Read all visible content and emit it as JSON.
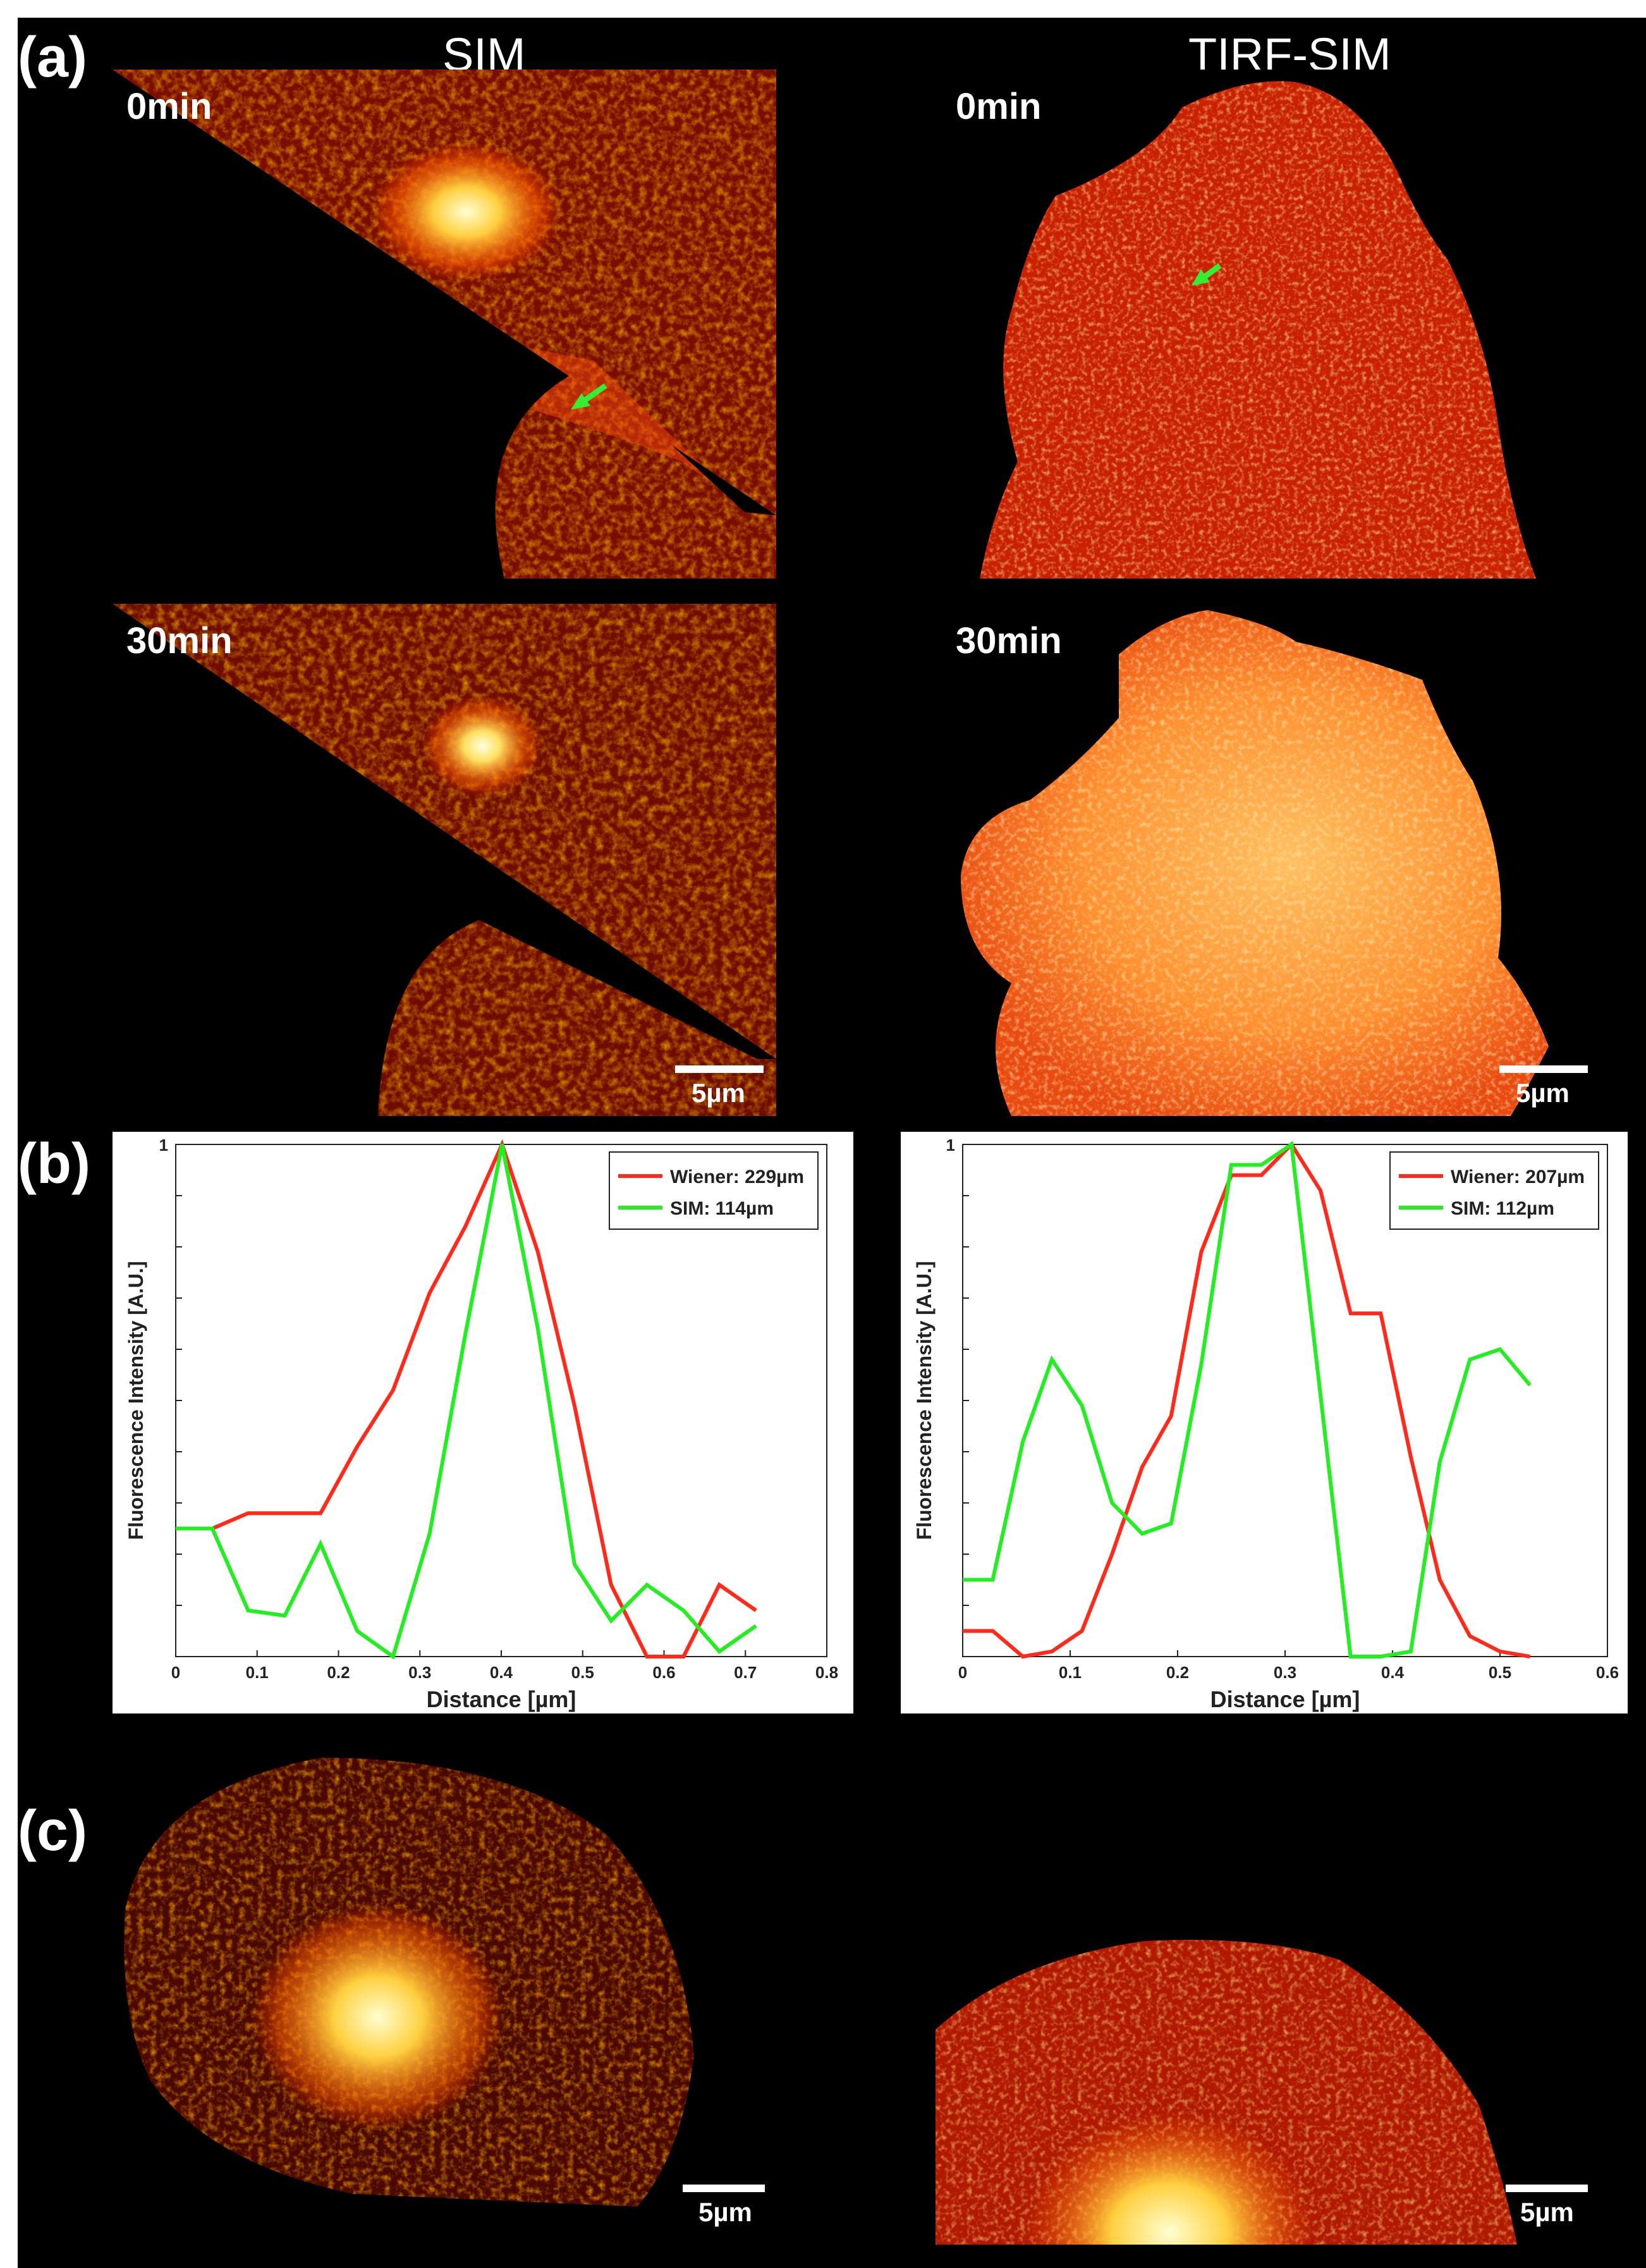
{
  "panels": {
    "a": "(a)",
    "b": "(b)",
    "c": "(c)"
  },
  "columns": {
    "left": "SIM",
    "right": "TIRF-SIM"
  },
  "time_labels": {
    "sim_top": "0min",
    "sim_bottom": "30min",
    "tirf_top": "0min",
    "tirf_bottom": "30min"
  },
  "scale_bar": "5µm",
  "colors": {
    "wiener": "#ff2a1a",
    "sim": "#22ee22",
    "arrow": "#33ee33"
  },
  "chart_data": [
    {
      "type": "line",
      "xlabel": "Distance [µm]",
      "ylabel": "Fluorescence Intensity [A.U.]",
      "xlim": [
        0,
        0.8
      ],
      "ylim": [
        0,
        1
      ],
      "xticks": [
        "0",
        "0.1",
        "0.2",
        "0.3",
        "0.4",
        "0.5",
        "0.6",
        "0.7",
        "0.8"
      ],
      "yticks": [
        "1"
      ],
      "legend_position": "top-right",
      "grid": false,
      "series": [
        {
          "name": "Wiener: 229µm",
          "color": "#ff2a1a",
          "x": [
            0,
            0.045,
            0.089,
            0.134,
            0.178,
            0.223,
            0.267,
            0.312,
            0.356,
            0.401,
            0.445,
            0.49,
            0.535,
            0.579,
            0.624,
            0.668,
            0.713
          ],
          "y": [
            0.25,
            0.25,
            0.28,
            0.28,
            0.28,
            0.41,
            0.52,
            0.71,
            0.84,
            1.0,
            0.79,
            0.49,
            0.14,
            0.0,
            0.0,
            0.14,
            0.09
          ]
        },
        {
          "name": "SIM: 114µm",
          "color": "#22ee22",
          "x": [
            0,
            0.045,
            0.089,
            0.134,
            0.178,
            0.223,
            0.267,
            0.312,
            0.356,
            0.401,
            0.445,
            0.49,
            0.535,
            0.579,
            0.624,
            0.668,
            0.713
          ],
          "y": [
            0.25,
            0.25,
            0.09,
            0.08,
            0.22,
            0.05,
            0.0,
            0.24,
            0.63,
            1.0,
            0.64,
            0.18,
            0.07,
            0.14,
            0.09,
            0.01,
            0.06
          ]
        }
      ]
    },
    {
      "type": "line",
      "xlabel": "Distance [µm]",
      "ylabel": "Fluorescence Intensity [A.U.]",
      "xlim": [
        0,
        0.6
      ],
      "ylim": [
        0,
        1
      ],
      "xticks": [
        "0",
        "0.1",
        "0.2",
        "0.3",
        "0.4",
        "0.5",
        "0.6"
      ],
      "yticks": [
        "1"
      ],
      "legend_position": "top-right",
      "grid": false,
      "series": [
        {
          "name": "Wiener: 207µm",
          "color": "#ff2a1a",
          "x": [
            0,
            0.028,
            0.056,
            0.083,
            0.111,
            0.139,
            0.167,
            0.194,
            0.222,
            0.25,
            0.278,
            0.306,
            0.333,
            0.361,
            0.389,
            0.417,
            0.444,
            0.472,
            0.5,
            0.528
          ],
          "y": [
            0.05,
            0.05,
            0.0,
            0.01,
            0.05,
            0.2,
            0.37,
            0.47,
            0.79,
            0.94,
            0.94,
            1.0,
            0.91,
            0.67,
            0.67,
            0.39,
            0.15,
            0.04,
            0.01,
            0.0
          ]
        },
        {
          "name": "SIM: 112µm",
          "color": "#22ee22",
          "x": [
            0,
            0.028,
            0.056,
            0.083,
            0.111,
            0.139,
            0.167,
            0.194,
            0.222,
            0.25,
            0.278,
            0.306,
            0.333,
            0.361,
            0.389,
            0.417,
            0.444,
            0.472,
            0.5,
            0.528
          ],
          "y": [
            0.15,
            0.15,
            0.42,
            0.58,
            0.49,
            0.3,
            0.24,
            0.26,
            0.57,
            0.96,
            0.96,
            1.0,
            0.51,
            0.0,
            0.0,
            0.01,
            0.38,
            0.58,
            0.6,
            0.53
          ]
        }
      ]
    }
  ]
}
